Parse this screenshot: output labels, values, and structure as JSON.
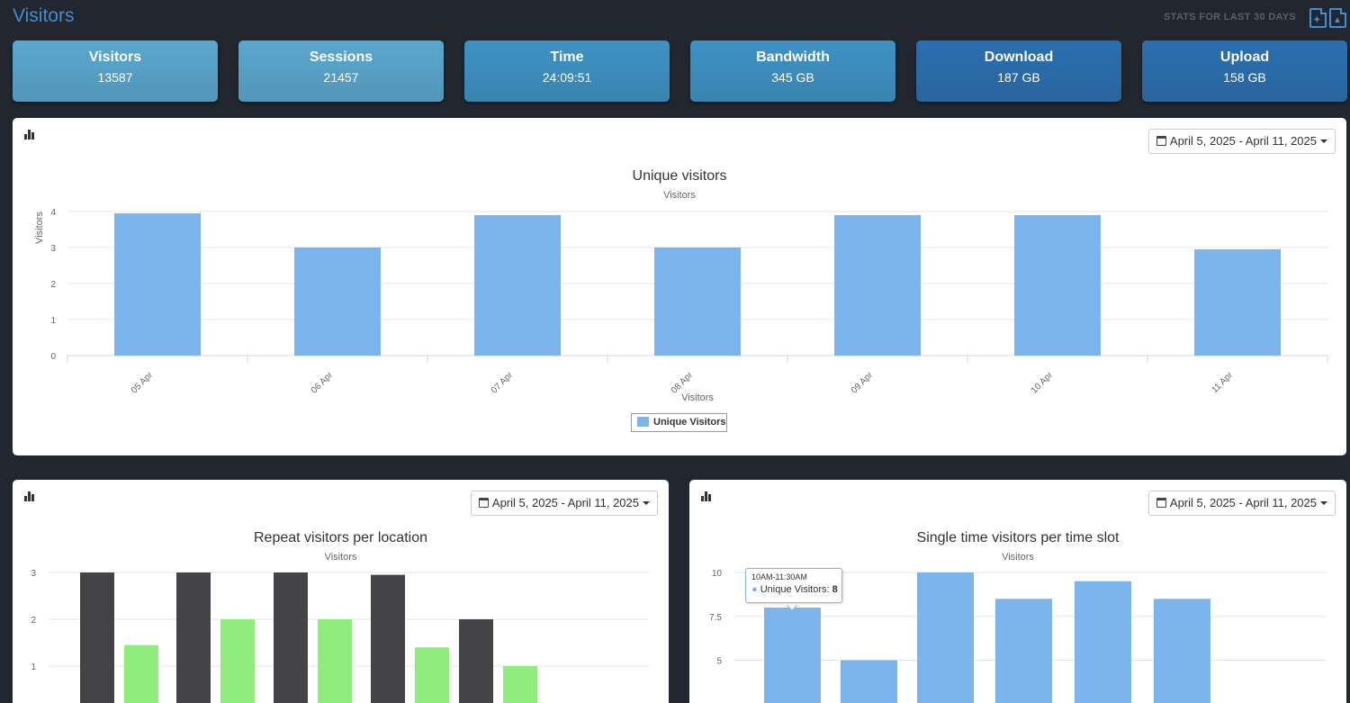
{
  "header": {
    "title": "Visitors",
    "stats_label": "STATS FOR LAST 30 DAYS",
    "export_pdf_icon": "pdf-export-icon",
    "export_image_icon": "image-export-icon"
  },
  "stats": [
    {
      "label": "Visitors",
      "value": "13587",
      "color": "#5aa7cf"
    },
    {
      "label": "Sessions",
      "value": "21457",
      "color": "#5aa7cf"
    },
    {
      "label": "Time",
      "value": "24:09:51",
      "color": "#3e92c4"
    },
    {
      "label": "Bandwidth",
      "value": "345 GB",
      "color": "#3e92c4"
    },
    {
      "label": "Download",
      "value": "187 GB",
      "color": "#2a6fb0"
    },
    {
      "label": "Upload",
      "value": "158 GB",
      "color": "#2a6fb0"
    }
  ],
  "panels": {
    "unique": {
      "date_range": "April 5, 2025 - April 11, 2025",
      "legend": "Unique Visitors"
    },
    "repeat": {
      "date_range": "April 5, 2025 - April 11, 2025"
    },
    "single": {
      "date_range": "April 5, 2025 - April 11, 2025",
      "tooltip": {
        "header": "10AM-11:30AM",
        "series": "Unique Visitors",
        "value": "8"
      }
    }
  },
  "chart_data": [
    {
      "type": "bar",
      "title": "Unique visitors",
      "subtitle": "Visitors",
      "xlabel": "Visitors",
      "ylabel": "Visitors",
      "categories": [
        "05 Apr",
        "06 Apr",
        "07 Apr",
        "08 Apr",
        "09 Apr",
        "10 Apr",
        "11 Apr"
      ],
      "series": [
        {
          "name": "Unique Visitors",
          "values": [
            3.95,
            3.0,
            3.9,
            3.0,
            3.9,
            3.9,
            2.95
          ]
        }
      ],
      "yticks": [
        0,
        1,
        2,
        3,
        4
      ],
      "ylim": [
        0,
        4
      ],
      "grid": true,
      "legend": "bottom-center",
      "color": "#7cb5ec"
    },
    {
      "type": "bar",
      "title": "Repeat visitors per location",
      "subtitle": "Visitors",
      "categories": [
        "",
        "",
        "",
        "",
        ""
      ],
      "series": [
        {
          "values": [
            3.0,
            3.0,
            3.0,
            2.95,
            2.0
          ],
          "color": "#434348"
        },
        {
          "values": [
            1.45,
            2.0,
            2.0,
            1.4,
            1.0
          ],
          "color": "#90ed7d"
        }
      ],
      "yticks": [
        1,
        2,
        3
      ],
      "grid": true
    },
    {
      "type": "bar",
      "title": "Single time visitors per time slot",
      "subtitle": "Visitors",
      "categories": [
        "10AM-11:30AM",
        "",
        "",
        "",
        "",
        ""
      ],
      "series": [
        {
          "name": "Unique Visitors",
          "values": [
            8,
            5,
            10,
            8.5,
            9.5,
            8.5
          ]
        }
      ],
      "yticks": [
        5,
        7.5,
        10
      ],
      "grid": true,
      "color": "#7cb5ec"
    }
  ]
}
